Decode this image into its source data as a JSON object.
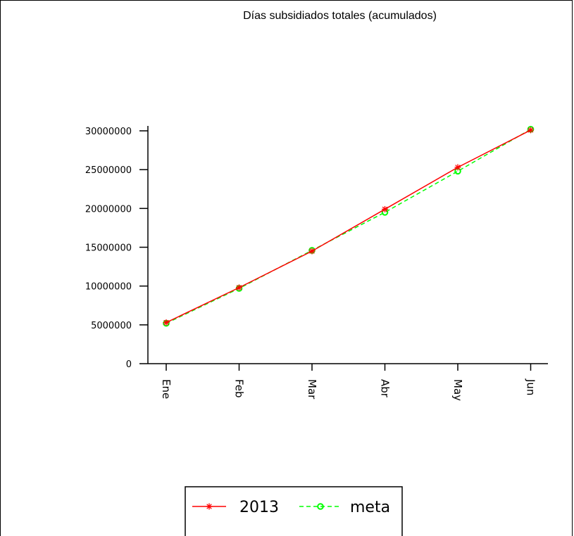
{
  "chart_data": {
    "type": "line",
    "title": "Días subsidiados totales (acumulados)",
    "xlabel": "",
    "ylabel": "",
    "categories": [
      "Ene",
      "Feb",
      "Mar",
      "Abr",
      "May",
      "Jun"
    ],
    "yticks": [
      "0",
      "5000000",
      "10000000",
      "15000000",
      "20000000",
      "25000000",
      "30000000"
    ],
    "ylim": [
      0,
      30000000
    ],
    "grid": false,
    "legend_position": "bottom",
    "series": [
      {
        "name": "2013",
        "color": "#ff0000",
        "marker": "asterisk",
        "line_style": "solid",
        "values": [
          5300000,
          9800000,
          14500000,
          19900000,
          25300000,
          30100000
        ]
      },
      {
        "name": "meta",
        "color": "#00ff00",
        "marker": "circle",
        "line_style": "dashed",
        "values": [
          5200000,
          9700000,
          14600000,
          19500000,
          24800000,
          30200000
        ]
      }
    ]
  }
}
